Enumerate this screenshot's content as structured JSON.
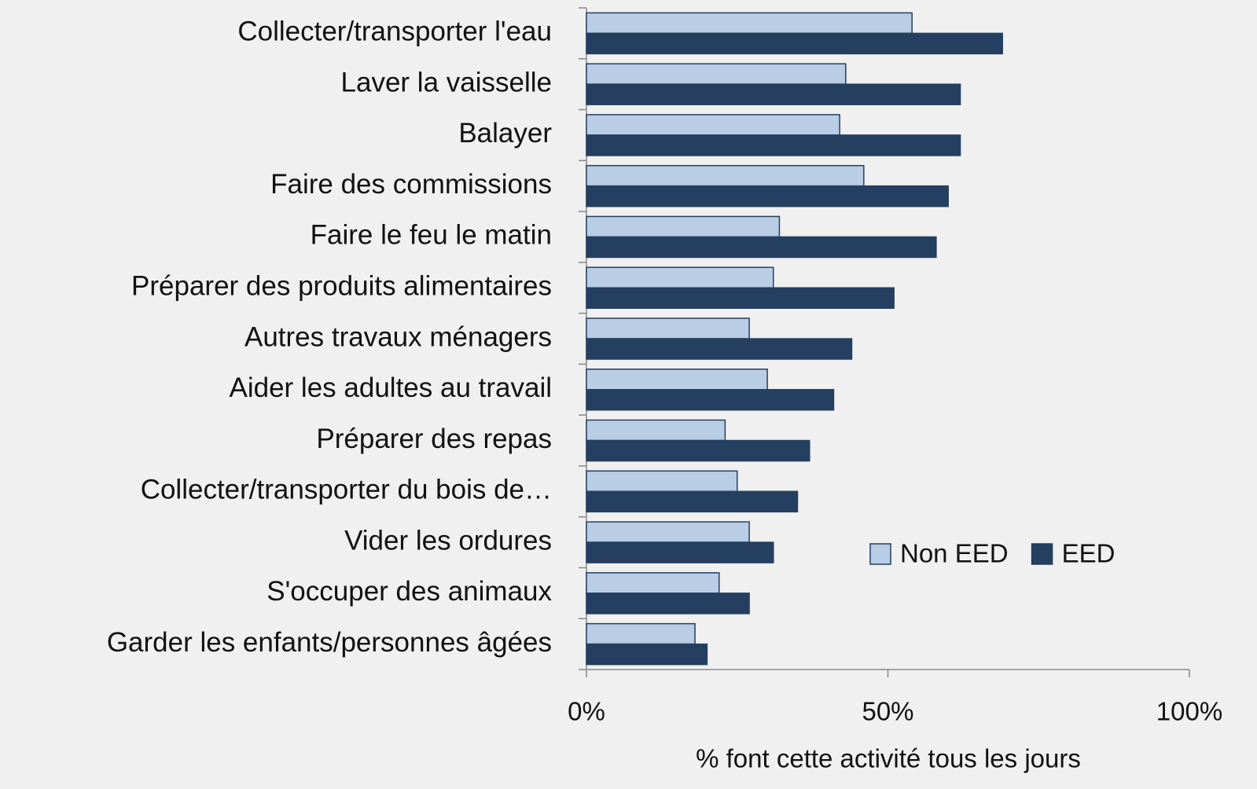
{
  "chart_data": {
    "type": "hbar",
    "x_label": "% font cette activité tous les jours",
    "categories": [
      "Collecter/transporter l'eau",
      "Laver la vaisselle",
      "Balayer",
      "Faire des commissions",
      "Faire le feu le matin",
      "Préparer des produits alimentaires",
      "Autres travaux ménagers",
      "Aider les adultes au travail",
      "Préparer des repas",
      "Collecter/transporter du bois de…",
      "Vider les ordures",
      "S'occuper des animaux",
      "Garder les enfants/personnes âgées"
    ],
    "series": [
      {
        "name": "Non EED",
        "color": "#b9cde5",
        "values": [
          54,
          43,
          42,
          46,
          32,
          31,
          27,
          30,
          23,
          25,
          27,
          22,
          18
        ]
      },
      {
        "name": "EED",
        "color": "#243f60",
        "values": [
          69,
          62,
          62,
          60,
          58,
          51,
          44,
          41,
          37,
          35,
          31,
          27,
          20
        ]
      }
    ],
    "xlim": [
      0,
      100
    ],
    "xticks": [
      {
        "value": 0,
        "label": "0%"
      },
      {
        "value": 50,
        "label": "50%"
      },
      {
        "value": 100,
        "label": "100%"
      }
    ],
    "legend": "lower right"
  }
}
